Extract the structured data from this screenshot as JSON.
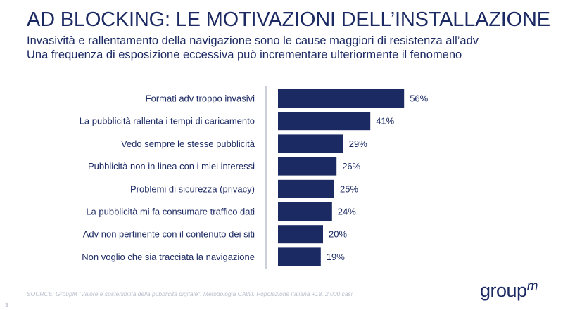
{
  "header": {
    "title": "AD BLOCKING: LE MOTIVAZIONI DELL’INSTALLAZIONE",
    "subtitle_1": "Invasività e rallentamento della navigazione sono le cause maggiori di resistenza all’adv",
    "subtitle_2": "Una frequenza di esposizione eccessiva può incrementare ulteriormente il fenomeno"
  },
  "chart_data": {
    "type": "bar",
    "orientation": "horizontal",
    "categories": [
      "Formati adv troppo invasivi",
      "La pubblicità rallenta i tempi di caricamento",
      "Vedo sempre le stesse pubblicità",
      "Pubblicità non in linea con i miei interessi",
      "Problemi di sicurezza (privacy)",
      "La pubblicità mi fa consumare traffico dati",
      "Adv non pertinente con il contenuto dei siti",
      "Non voglio che sia tracciata la navigazione"
    ],
    "values": [
      56,
      41,
      29,
      26,
      25,
      24,
      20,
      19
    ],
    "value_labels": [
      "56%",
      "41%",
      "29%",
      "26%",
      "25%",
      "24%",
      "20%",
      "19%"
    ],
    "unit": "%",
    "xlim": [
      0,
      100
    ],
    "grid": false,
    "legend": false,
    "bar_color": "#1c2a63"
  },
  "footer": {
    "source": "SOURCE: GroupM \"Valore e sostenibilità della pubblicità digitale\". Metodologia CAWI. Popolazione italiana +18. 2.000 casi.",
    "page_number": "3",
    "logo_text": "group",
    "logo_sup": "m"
  }
}
